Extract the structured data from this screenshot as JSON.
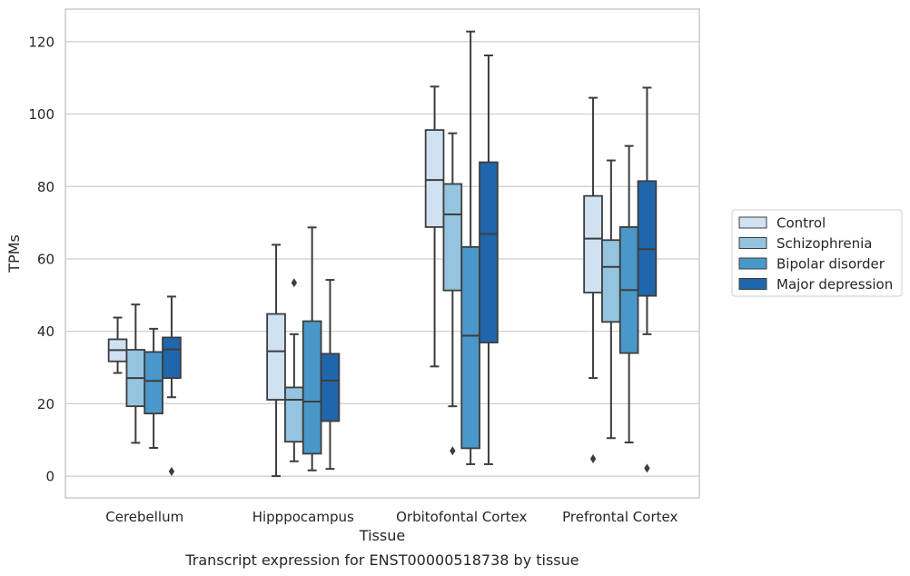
{
  "caption": "Transcript expression for ENST00000518738 by tissue",
  "chart_data": {
    "type": "box",
    "title": "",
    "xlabel": "Tissue",
    "ylabel": "TPMs",
    "ylim": [
      -6,
      129
    ],
    "yticks": [
      0,
      20,
      40,
      60,
      80,
      100,
      120
    ],
    "grid": "horizontal",
    "legend_position": "right",
    "categories": [
      "Cerebellum",
      "Hipppocampus",
      "Orbitofontal Cortex",
      "Prefrontal Cortex"
    ],
    "series": [
      {
        "name": "Control",
        "color": "#d0e1f2",
        "boxes": [
          {
            "whislo": 28.5,
            "q1": 31.7,
            "med": 34.8,
            "q3": 37.8,
            "whishi": 43.8,
            "fliers": []
          },
          {
            "whislo": 0.0,
            "q1": 21.1,
            "med": 34.5,
            "q3": 44.8,
            "whishi": 63.9,
            "fliers": []
          },
          {
            "whislo": 30.3,
            "q1": 68.8,
            "med": 81.8,
            "q3": 95.6,
            "whishi": 107.6,
            "fliers": []
          },
          {
            "whislo": 27.1,
            "q1": 50.7,
            "med": 65.6,
            "q3": 77.4,
            "whishi": 104.5,
            "fliers": [
              4.8
            ]
          }
        ]
      },
      {
        "name": "Schizophrenia",
        "color": "#94c4df",
        "boxes": [
          {
            "whislo": 9.2,
            "q1": 19.3,
            "med": 27.1,
            "q3": 34.9,
            "whishi": 47.4,
            "fliers": []
          },
          {
            "whislo": 4.1,
            "q1": 9.5,
            "med": 21.1,
            "q3": 24.5,
            "whishi": 39.2,
            "fliers": [
              53.4
            ]
          },
          {
            "whislo": 19.3,
            "q1": 51.3,
            "med": 72.3,
            "q3": 80.7,
            "whishi": 94.7,
            "fliers": [
              7.0
            ]
          },
          {
            "whislo": 10.5,
            "q1": 42.6,
            "med": 57.8,
            "q3": 65.2,
            "whishi": 87.2,
            "fliers": []
          }
        ]
      },
      {
        "name": "Bipolar disorder",
        "color": "#4a98c9",
        "boxes": [
          {
            "whislo": 7.8,
            "q1": 17.3,
            "med": 26.3,
            "q3": 34.3,
            "whishi": 40.7,
            "fliers": []
          },
          {
            "whislo": 1.6,
            "q1": 6.2,
            "med": 20.6,
            "q3": 42.8,
            "whishi": 68.7,
            "fliers": []
          },
          {
            "whislo": 3.3,
            "q1": 7.7,
            "med": 38.8,
            "q3": 63.3,
            "whishi": 122.8,
            "fliers": []
          },
          {
            "whislo": 9.3,
            "q1": 34.0,
            "med": 51.4,
            "q3": 68.8,
            "whishi": 91.2,
            "fliers": []
          }
        ]
      },
      {
        "name": "Major depression",
        "color": "#2066ac",
        "boxes": [
          {
            "whislo": 21.8,
            "q1": 27.1,
            "med": 35.0,
            "q3": 38.3,
            "whishi": 49.6,
            "fliers": [
              1.3
            ]
          },
          {
            "whislo": 2.0,
            "q1": 15.2,
            "med": 26.4,
            "q3": 33.8,
            "whishi": 54.2,
            "fliers": []
          },
          {
            "whislo": 3.3,
            "q1": 36.9,
            "med": 66.9,
            "q3": 86.7,
            "whishi": 116.2,
            "fliers": []
          },
          {
            "whislo": 39.2,
            "q1": 49.8,
            "med": 62.7,
            "q3": 81.5,
            "whishi": 107.3,
            "fliers": [
              2.2
            ]
          }
        ]
      }
    ]
  }
}
